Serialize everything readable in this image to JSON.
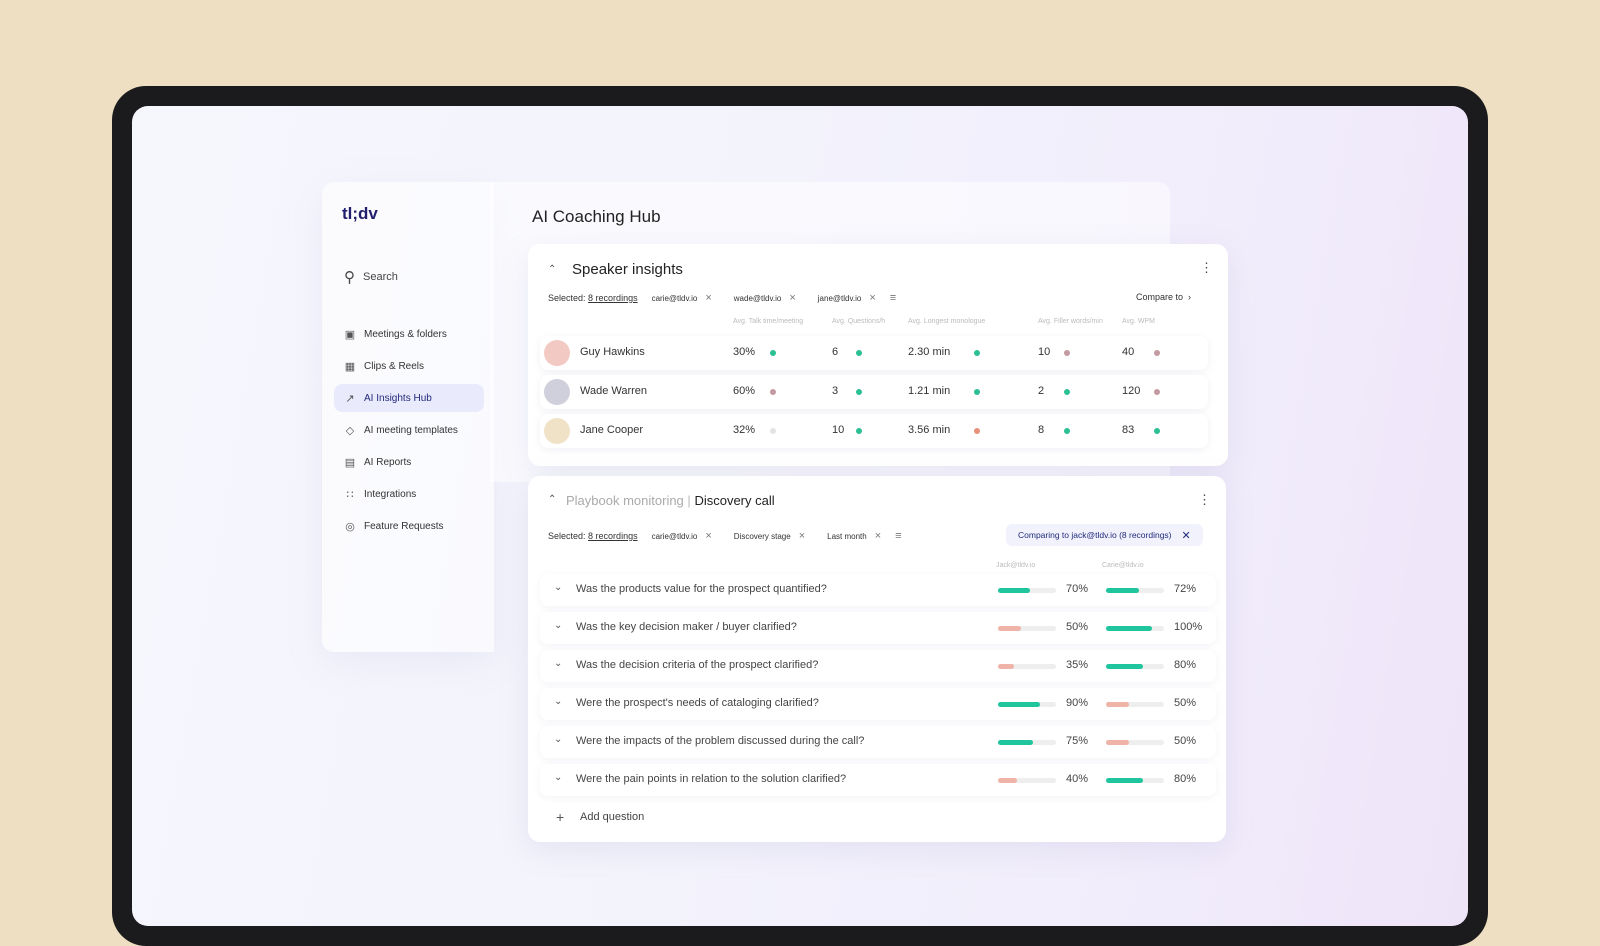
{
  "app": {
    "logo": "tl;dv",
    "page_title": "AI Coaching Hub"
  },
  "sidebar": {
    "search": "Search",
    "items": [
      {
        "label": "Meetings & folders",
        "icon": "video-icon"
      },
      {
        "label": "Clips & Reels",
        "icon": "clapper-icon"
      },
      {
        "label": "AI Insights Hub",
        "icon": "trend-icon",
        "active": true
      },
      {
        "label": "AI meeting templates",
        "icon": "tag-icon"
      },
      {
        "label": "AI Reports",
        "icon": "report-icon"
      },
      {
        "label": "Integrations",
        "icon": "grid-icon"
      },
      {
        "label": "Feature Requests",
        "icon": "bulb-icon"
      }
    ]
  },
  "speaker": {
    "title": "Speaker insights",
    "selected_label": "Selected:",
    "selected_value": "8 recordings",
    "chips": [
      "carie@tldv.io",
      "wade@tldv.io",
      "jane@tldv.io"
    ],
    "compare": "Compare to",
    "columns": [
      "Avg. Talk time/meeting",
      "Avg. Questions/h",
      "Avg. Longest monologue",
      "Avg. Filler words/min",
      "Avg. WPM"
    ],
    "colors": {
      "good": "#2bbf94",
      "neutral": "#c49aa0",
      "none": "#e3e3e3",
      "bad": "#e8907a"
    },
    "rows": [
      {
        "name": "Guy Hawkins",
        "values": [
          "30%",
          "6",
          "2.30 min",
          "10",
          "40"
        ],
        "status": [
          "good",
          "good",
          "good",
          "neutral",
          "neutral"
        ]
      },
      {
        "name": "Wade Warren",
        "values": [
          "60%",
          "3",
          "1.21 min",
          "2",
          "120"
        ],
        "status": [
          "neutral",
          "good",
          "good",
          "good",
          "neutral"
        ]
      },
      {
        "name": "Jane Cooper",
        "values": [
          "32%",
          "10",
          "3.56 min",
          "8",
          "83"
        ],
        "status": [
          "none",
          "good",
          "bad",
          "good",
          "good"
        ]
      }
    ]
  },
  "playbook": {
    "title_muted": "Playbook monitoring",
    "separator": "|",
    "title": "Discovery call",
    "selected_label": "Selected:",
    "selected_value": "8 recordings",
    "chips": [
      "carie@tldv.io",
      "Discovery stage",
      "Last month"
    ],
    "comparing": "Comparing to jack@tldv.io (8 recordings)",
    "columns": [
      "Jack@tldv.io",
      "Carie@tldv.io"
    ],
    "questions": [
      {
        "text": "Was the products value for the prospect quantified?",
        "a": 70,
        "b": 72
      },
      {
        "text": "Was the key decision maker / buyer clarified?",
        "a": 50,
        "b": 100
      },
      {
        "text": "Was the decision criteria of the prospect clarified?",
        "a": 35,
        "b": 80
      },
      {
        "text": "Were the prospect's needs of cataloging clarified?",
        "a": 90,
        "b": 50
      },
      {
        "text": "Were the impacts of the problem discussed during the call?",
        "a": 75,
        "b": 50
      },
      {
        "text": "Were the pain points in relation to the solution clarified?",
        "a": 40,
        "b": 80
      }
    ],
    "add": "Add question",
    "colors": {
      "high": "#1fc59c",
      "low": "#f0b3a8"
    }
  }
}
